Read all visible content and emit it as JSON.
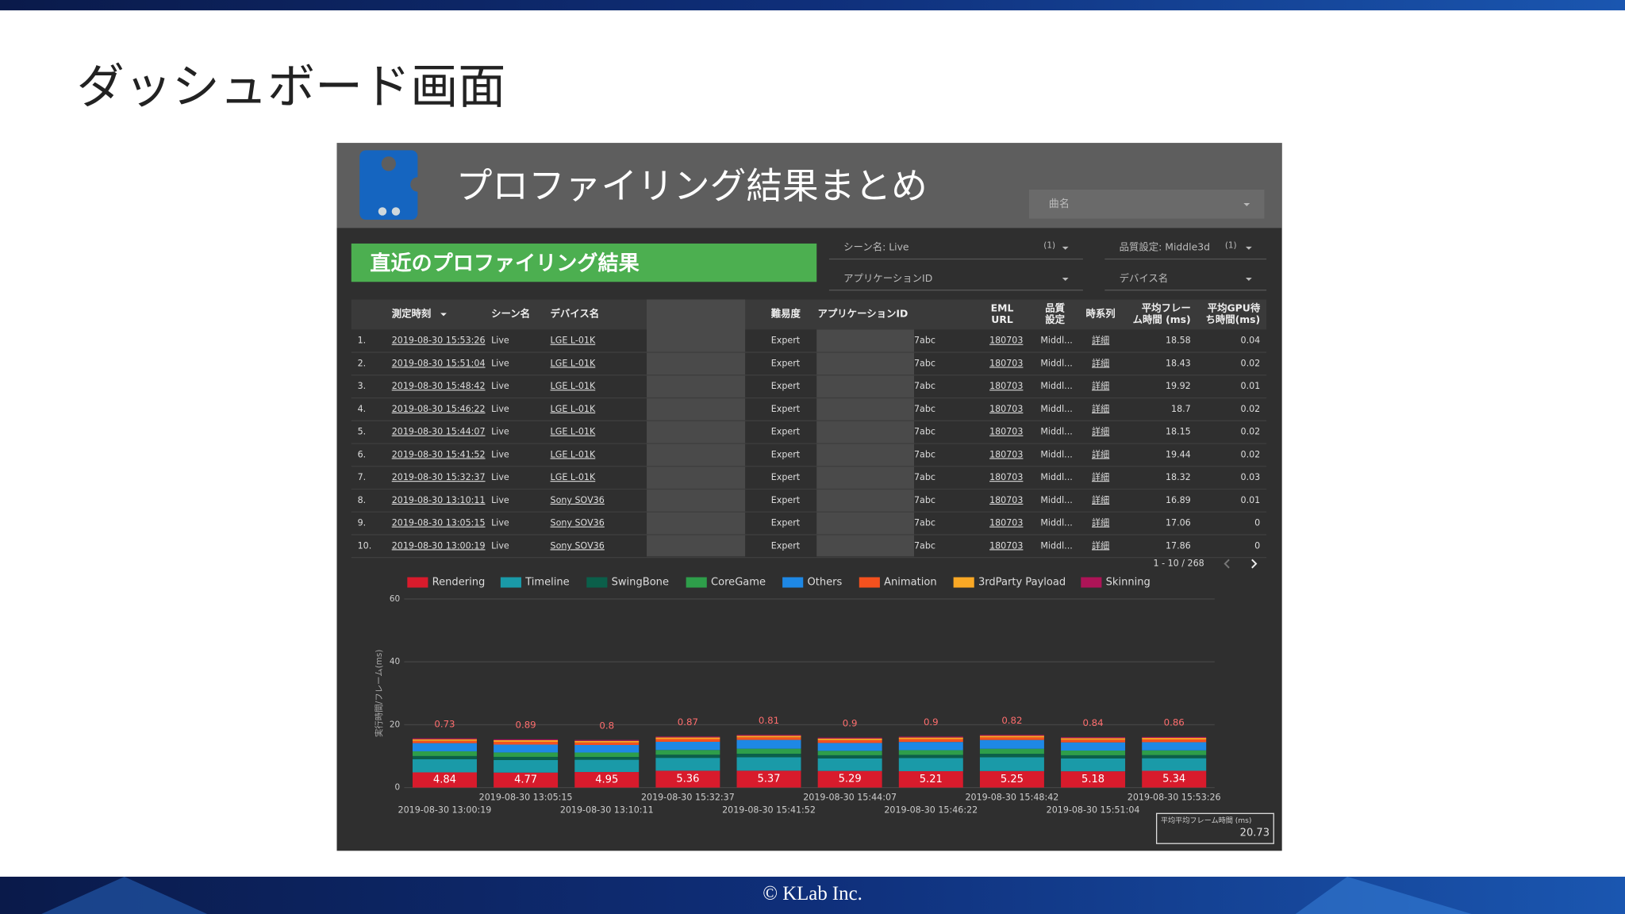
{
  "slide": {
    "title": "ダッシュボード画面",
    "footer": "© KLab Inc."
  },
  "dashboard": {
    "title": "プロファイリング結果まとめ",
    "song_filter": "曲名",
    "section_title": "直近のプロファイリング結果",
    "filters": [
      {
        "label": "シーン名: Live",
        "count": "(1)"
      },
      {
        "label": "品質設定: Middle3d",
        "count": "(1)"
      },
      {
        "label": "アプリケーションID"
      },
      {
        "label": "デバイス名"
      }
    ]
  },
  "table": {
    "columns": [
      [
        "測定時刻"
      ],
      [
        "シーン名"
      ],
      [
        "デバイス名"
      ],
      [
        "難易度"
      ],
      [
        "アプリケーションID"
      ],
      [
        "EML",
        "URL"
      ],
      [
        "品質",
        "設定"
      ],
      [
        "時系列"
      ],
      [
        "平均フレー",
        "ム時間 (ms)"
      ],
      [
        "平均GPU待",
        "ち時間(ms)"
      ]
    ],
    "rows": [
      [
        "1.",
        "2019-08-30 15:53:26",
        "Live",
        "LGE L-01K",
        "Expert",
        "7abc",
        "180703",
        "Middl...",
        "詳細",
        18.58,
        0.04
      ],
      [
        "2.",
        "2019-08-30 15:51:04",
        "Live",
        "LGE L-01K",
        "Expert",
        "7abc",
        "180703",
        "Middl...",
        "詳細",
        18.43,
        0.02
      ],
      [
        "3.",
        "2019-08-30 15:48:42",
        "Live",
        "LGE L-01K",
        "Expert",
        "7abc",
        "180703",
        "Middl...",
        "詳細",
        19.92,
        0.01
      ],
      [
        "4.",
        "2019-08-30 15:46:22",
        "Live",
        "LGE L-01K",
        "Expert",
        "7abc",
        "180703",
        "Middl...",
        "詳細",
        18.7,
        0.02
      ],
      [
        "5.",
        "2019-08-30 15:44:07",
        "Live",
        "LGE L-01K",
        "Expert",
        "7abc",
        "180703",
        "Middl...",
        "詳細",
        18.15,
        0.02
      ],
      [
        "6.",
        "2019-08-30 15:41:52",
        "Live",
        "LGE L-01K",
        "Expert",
        "7abc",
        "180703",
        "Middl...",
        "詳細",
        19.44,
        0.02
      ],
      [
        "7.",
        "2019-08-30 15:32:37",
        "Live",
        "LGE L-01K",
        "Expert",
        "7abc",
        "180703",
        "Middl...",
        "詳細",
        18.32,
        0.03
      ],
      [
        "8.",
        "2019-08-30 13:10:11",
        "Live",
        "Sony SOV36",
        "Expert",
        "7abc",
        "180703",
        "Middl...",
        "詳細",
        16.89,
        0.01
      ],
      [
        "9.",
        "2019-08-30 13:05:15",
        "Live",
        "Sony SOV36",
        "Expert",
        "7abc",
        "180703",
        "Middl...",
        "詳細",
        17.06,
        0
      ],
      [
        "10.",
        "2019-08-30 13:00:19",
        "Live",
        "Sony SOV36",
        "Expert",
        "7abc",
        "180703",
        "Middl...",
        "詳細",
        17.86,
        0
      ]
    ],
    "pagination": "1 - 10 / 268"
  },
  "chart_data": {
    "type": "stacked_bar",
    "y_label": "実行時間/フレーム(ms)",
    "categories": [
      "2019-08-30 13:00:19",
      "2019-08-30 13:05:15",
      "2019-08-30 13:10:11",
      "2019-08-30 15:32:37",
      "2019-08-30 15:41:52",
      "2019-08-30 15:44:07",
      "2019-08-30 15:46:22",
      "2019-08-30 15:48:42",
      "2019-08-30 15:51:04",
      "2019-08-30 15:53:26"
    ],
    "ylim": [
      0,
      60
    ],
    "yticks": [
      0,
      20,
      40,
      60
    ],
    "grid": true,
    "series": [
      {
        "name": "Rendering",
        "color": "#d81b2c",
        "values": [
          4.84,
          4.77,
          4.95,
          5.36,
          5.37,
          5.29,
          5.21,
          5.25,
          5.18,
          5.34
        ],
        "labels": true
      },
      {
        "name": "Timeline",
        "color": "#1a9aa8",
        "values": [
          4.2,
          4.0,
          3.9,
          4.1,
          4.3,
          4.0,
          4.2,
          4.4,
          4.1,
          4.0
        ]
      },
      {
        "name": "SwingBone",
        "color": "#0b5f4a",
        "values": [
          1.0,
          1.0,
          0.9,
          1.0,
          1.1,
          1.0,
          1.0,
          1.1,
          1.0,
          1.0
        ]
      },
      {
        "name": "CoreGame",
        "color": "#2e9e4a",
        "values": [
          1.5,
          1.4,
          1.4,
          1.5,
          1.6,
          1.4,
          1.5,
          1.6,
          1.5,
          1.5
        ]
      },
      {
        "name": "Others",
        "color": "#1e88e5",
        "values": [
          2.6,
          2.5,
          2.4,
          2.6,
          2.8,
          2.5,
          2.6,
          2.8,
          2.6,
          2.6
        ]
      },
      {
        "name": "Animation",
        "color": "#f4511e",
        "values": [
          0.73,
          0.89,
          0.8,
          0.87,
          0.81,
          0.9,
          0.9,
          0.82,
          0.84,
          0.86
        ],
        "labels": true
      },
      {
        "name": "3rdParty Payload",
        "color": "#f9a825",
        "values": [
          0.5,
          0.5,
          0.5,
          0.5,
          0.5,
          0.5,
          0.5,
          0.5,
          0.5,
          0.5
        ]
      },
      {
        "name": "Skinning",
        "color": "#ad1457",
        "values": [
          0.3,
          0.3,
          0.3,
          0.3,
          0.3,
          0.3,
          0.3,
          0.3,
          0.3,
          0.3
        ]
      }
    ]
  },
  "scorecard": {
    "label": "平均平均フレーム時間 (ms)",
    "value": 20.73
  }
}
